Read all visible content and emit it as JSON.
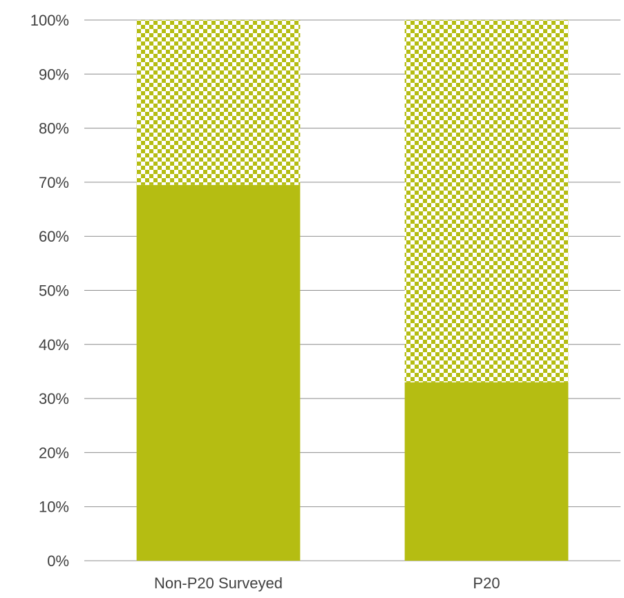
{
  "chart_data": {
    "type": "bar",
    "stacked": true,
    "percent_stacked": true,
    "categories": [
      "Non-P20 Surveyed",
      "P20"
    ],
    "series": [
      {
        "values": [
          69.5,
          33
        ],
        "pattern": "solid",
        "color": "#b5bd12"
      },
      {
        "values": [
          30.5,
          67
        ],
        "pattern": "checkered",
        "color": "#b5bd12"
      }
    ],
    "ylim": [
      0,
      100
    ],
    "yticks": [
      "0%",
      "10%",
      "20%",
      "30%",
      "40%",
      "50%",
      "60%",
      "70%",
      "80%",
      "90%",
      "100%"
    ],
    "grid": true,
    "legend": "none"
  }
}
